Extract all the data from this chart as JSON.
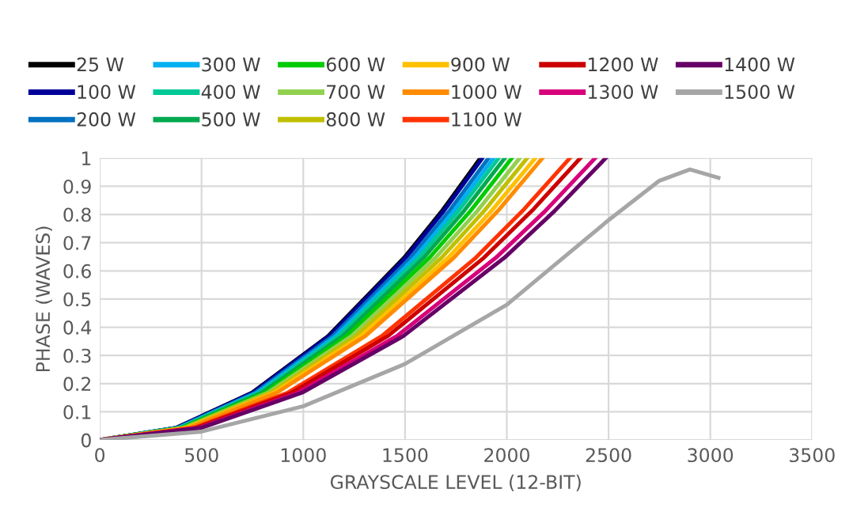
{
  "chart_data": {
    "type": "line",
    "xlabel": "GRAYSCALE LEVEL (12-BIT)",
    "ylabel": "PHASE (WAVES)",
    "xlim": [
      0,
      3500
    ],
    "ylim": [
      0,
      1
    ],
    "xticks": [
      0,
      500,
      1000,
      1500,
      2000,
      2500,
      3000,
      3500
    ],
    "yticks": [
      0,
      0.1,
      0.2,
      0.3,
      0.4,
      0.5,
      0.6,
      0.7,
      0.8,
      0.9,
      1
    ],
    "grid": true,
    "legend": "top",
    "marker": "none",
    "line_style": "solid",
    "series": [
      {
        "name": "25 W",
        "color": "#000000",
        "x": [
          0,
          374,
          748,
          1122,
          1496,
          1683,
          1870
        ],
        "values": [
          0,
          0.043,
          0.168,
          0.369,
          0.647,
          0.814,
          1
        ]
      },
      {
        "name": "100 W",
        "color": "#000099",
        "x": [
          0,
          376,
          752,
          1128,
          1504,
          1692,
          1880
        ],
        "values": [
          0,
          0.043,
          0.168,
          0.369,
          0.647,
          0.814,
          1
        ]
      },
      {
        "name": "200 W",
        "color": "#0070c0",
        "x": [
          0,
          382,
          764,
          1146,
          1528,
          1719,
          1910
        ],
        "values": [
          0,
          0.043,
          0.168,
          0.369,
          0.647,
          0.814,
          1
        ]
      },
      {
        "name": "300 W",
        "color": "#00b0f0",
        "x": [
          0,
          387,
          774,
          1161,
          1548,
          1742,
          1935
        ],
        "values": [
          0,
          0.043,
          0.168,
          0.369,
          0.647,
          0.814,
          1
        ]
      },
      {
        "name": "400 W",
        "color": "#00c896",
        "x": [
          0,
          392,
          784,
          1176,
          1568,
          1764,
          1960
        ],
        "values": [
          0,
          0.043,
          0.168,
          0.369,
          0.647,
          0.814,
          1
        ]
      },
      {
        "name": "500 W",
        "color": "#00a84f",
        "x": [
          0,
          398,
          796,
          1194,
          1592,
          1791,
          1990
        ],
        "values": [
          0,
          0.043,
          0.168,
          0.369,
          0.647,
          0.814,
          1
        ]
      },
      {
        "name": "600 W",
        "color": "#00cc00",
        "x": [
          0,
          405,
          810,
          1215,
          1620,
          1823,
          2025
        ],
        "values": [
          0,
          0.043,
          0.168,
          0.369,
          0.647,
          0.814,
          1
        ]
      },
      {
        "name": "700 W",
        "color": "#92d050",
        "x": [
          0,
          413,
          826,
          1238,
          1650,
          1857,
          2063
        ],
        "values": [
          0,
          0.043,
          0.168,
          0.369,
          0.647,
          0.814,
          1
        ]
      },
      {
        "name": "800 W",
        "color": "#c0c000",
        "x": [
          0,
          420,
          840,
          1260,
          1680,
          1890,
          2100
        ],
        "values": [
          0,
          0.043,
          0.168,
          0.369,
          0.647,
          0.814,
          1
        ]
      },
      {
        "name": "900 W",
        "color": "#ffc000",
        "x": [
          0,
          428,
          856,
          1284,
          1712,
          1926,
          2140
        ],
        "values": [
          0,
          0.043,
          0.168,
          0.369,
          0.647,
          0.814,
          1
        ]
      },
      {
        "name": "1000 W",
        "color": "#ff8c00",
        "x": [
          0,
          435,
          870,
          1305,
          1740,
          1958,
          2175
        ],
        "values": [
          0,
          0.043,
          0.168,
          0.369,
          0.647,
          0.814,
          1
        ]
      },
      {
        "name": "1100 W",
        "color": "#ff3300",
        "x": [
          0,
          462,
          924,
          1386,
          1848,
          2079,
          2310
        ],
        "values": [
          0,
          0.043,
          0.168,
          0.369,
          0.647,
          0.814,
          1
        ]
      },
      {
        "name": "1200 W",
        "color": "#cc0000",
        "x": [
          0,
          472,
          944,
          1416,
          1888,
          2125,
          2361
        ],
        "values": [
          0,
          0.043,
          0.168,
          0.369,
          0.647,
          0.814,
          1
        ]
      },
      {
        "name": "1300 W",
        "color": "#d6007a",
        "x": [
          0,
          487,
          974,
          1460,
          1947,
          2191,
          2434
        ],
        "values": [
          0,
          0.043,
          0.168,
          0.369,
          0.647,
          0.814,
          1
        ]
      },
      {
        "name": "1400 W",
        "color": "#660066",
        "x": [
          0,
          497,
          994,
          1492,
          1989,
          2237,
          2486
        ],
        "values": [
          0,
          0.043,
          0.168,
          0.369,
          0.647,
          0.814,
          1
        ]
      },
      {
        "name": "1500 W",
        "color": "#a6a6a6",
        "x": [
          0,
          500,
          1000,
          1500,
          2000,
          2250,
          2500,
          2750,
          2900,
          3040
        ],
        "values": [
          0,
          0.03,
          0.12,
          0.27,
          0.48,
          0.63,
          0.78,
          0.92,
          0.96,
          0.93
        ]
      }
    ]
  }
}
